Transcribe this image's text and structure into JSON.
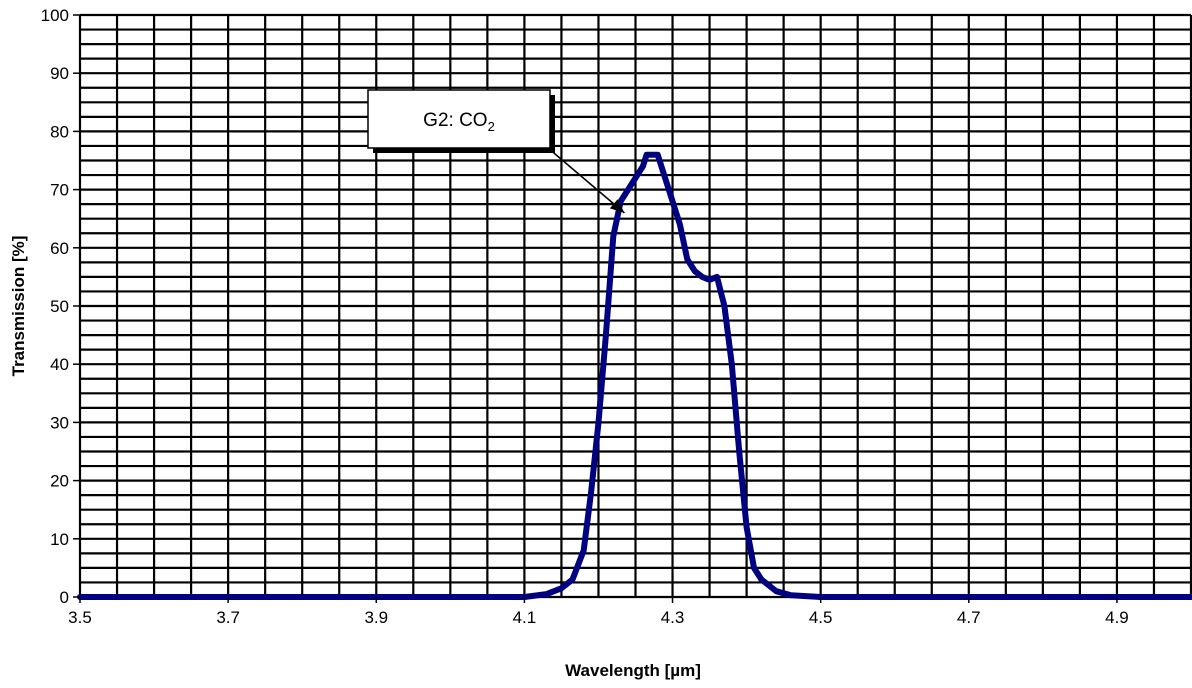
{
  "chart_data": {
    "type": "line",
    "xlabel": "Wavelength [µm]",
    "ylabel": "Transmission [%]",
    "xlim": [
      3.5,
      5.0
    ],
    "ylim": [
      0,
      100
    ],
    "x_tick_labels": [
      "3.5",
      "3.7",
      "3.9",
      "4.1",
      "4.3",
      "4.5",
      "4.7",
      "4.9"
    ],
    "y_tick_labels": [
      "0",
      "10",
      "20",
      "30",
      "40",
      "50",
      "60",
      "70",
      "80",
      "90",
      "100"
    ],
    "grid": true,
    "legend": "none",
    "series": [
      {
        "color": "#000080",
        "points": [
          [
            3.5,
            0
          ],
          [
            3.8,
            0
          ],
          [
            4.0,
            0
          ],
          [
            4.1,
            0
          ],
          [
            4.13,
            0.5
          ],
          [
            4.15,
            1.5
          ],
          [
            4.165,
            3
          ],
          [
            4.18,
            8
          ],
          [
            4.19,
            18
          ],
          [
            4.2,
            30
          ],
          [
            4.21,
            45
          ],
          [
            4.22,
            62
          ],
          [
            4.23,
            68
          ],
          [
            4.24,
            70
          ],
          [
            4.25,
            72
          ],
          [
            4.26,
            74
          ],
          [
            4.265,
            76
          ],
          [
            4.27,
            76
          ],
          [
            4.28,
            76
          ],
          [
            4.29,
            72
          ],
          [
            4.3,
            68
          ],
          [
            4.31,
            64
          ],
          [
            4.32,
            58
          ],
          [
            4.33,
            56
          ],
          [
            4.34,
            55
          ],
          [
            4.35,
            54.5
          ],
          [
            4.36,
            55
          ],
          [
            4.37,
            50
          ],
          [
            4.38,
            40
          ],
          [
            4.39,
            25
          ],
          [
            4.4,
            12
          ],
          [
            4.41,
            5
          ],
          [
            4.42,
            3
          ],
          [
            4.44,
            1
          ],
          [
            4.46,
            0.3
          ],
          [
            4.5,
            0
          ],
          [
            4.7,
            0
          ],
          [
            5.0,
            0
          ]
        ]
      }
    ],
    "annotations": [
      {
        "text": "G2: CO",
        "subscript": "2",
        "arrow_to": [
          4.235,
          66
        ]
      }
    ]
  }
}
